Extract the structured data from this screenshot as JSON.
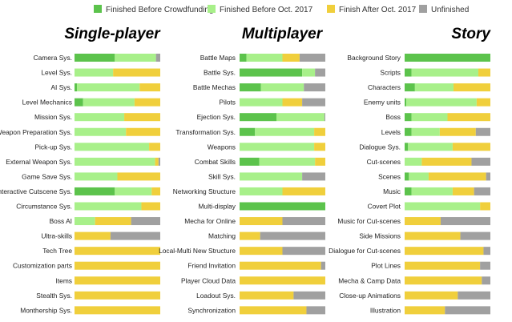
{
  "colors": {
    "before_crowdfunding": "#5cc34c",
    "before_oct_2017": "#a8f08a",
    "after_oct_2017": "#f0cf3c",
    "unfinished": "#a0a0a0"
  },
  "chart_data": [
    {
      "type": "bar",
      "orientation": "horizontal",
      "stacked": true,
      "title": "Single-player",
      "legend": {
        "placement": "top",
        "entries": [
          "Finished Before Crowdfunding",
          "Finished Before Oct. 2017",
          "Finish After Oct. 2017",
          "Unfinished"
        ]
      },
      "xlim": [
        0,
        100
      ],
      "categories": [
        "Camera Sys.",
        "Level Sys.",
        "AI Sys.",
        "Level Mechanics",
        "Mission Sys.",
        "Weapon Preparation Sys.",
        "Pick-up Sys.",
        "External Weapon Sys.",
        "Game Save Sys.",
        "Interactive Cutscene Sys.",
        "Circumstance Sys.",
        "Boss AI",
        "Ultra-skills",
        "Tech Tree",
        "Customization parts",
        "Items",
        "Stealth Sys.",
        "Monthership Sys."
      ],
      "series": [
        {
          "name": "Finished Before Crowdfunding",
          "values": [
            47,
            0,
            3,
            10,
            0,
            0,
            0,
            0,
            0,
            47,
            0,
            0,
            0,
            0,
            0,
            0,
            0,
            0
          ]
        },
        {
          "name": "Finished Before Oct. 2017",
          "values": [
            48,
            45,
            73,
            60,
            58,
            60,
            87,
            94,
            50,
            43,
            78,
            24,
            0,
            0,
            0,
            0,
            0,
            0
          ]
        },
        {
          "name": "Finish After Oct. 2017",
          "values": [
            0,
            55,
            24,
            30,
            42,
            40,
            13,
            4,
            50,
            10,
            22,
            42,
            42,
            100,
            100,
            100,
            100,
            100
          ]
        },
        {
          "name": "Unfinished",
          "values": [
            5,
            0,
            0,
            0,
            0,
            0,
            0,
            2,
            0,
            0,
            0,
            34,
            58,
            0,
            0,
            0,
            0,
            0
          ]
        }
      ]
    },
    {
      "type": "bar",
      "orientation": "horizontal",
      "stacked": true,
      "title": "Multiplayer",
      "xlim": [
        0,
        100
      ],
      "categories": [
        "Battle Maps",
        "Battle Sys.",
        "Battle Mechas",
        "Pilots",
        "Ejection Sys.",
        "Transformation Sys.",
        "Weapons",
        "Combat Skills",
        "Skill Sys.",
        "Networking Structure",
        "Multi-display",
        "Mecha for Online",
        "Matching",
        "Local-Multi New Structure",
        "Friend Invitation",
        "Player Cloud Data",
        "Loadout Sys.",
        "Synchronization"
      ],
      "series": [
        {
          "name": "Finished Before Crowdfunding",
          "values": [
            8,
            73,
            25,
            0,
            43,
            18,
            0,
            23,
            0,
            0,
            100,
            0,
            0,
            0,
            0,
            0,
            0,
            0
          ]
        },
        {
          "name": "Finished Before Oct. 2017",
          "values": [
            42,
            15,
            50,
            50,
            56,
            69,
            87,
            65,
            73,
            50,
            0,
            0,
            0,
            0,
            0,
            0,
            0,
            0
          ]
        },
        {
          "name": "Finish After Oct. 2017",
          "values": [
            20,
            0,
            0,
            23,
            0,
            13,
            13,
            12,
            0,
            50,
            0,
            50,
            24,
            50,
            95,
            100,
            63,
            78
          ]
        },
        {
          "name": "Unfinished",
          "values": [
            30,
            12,
            25,
            27,
            1,
            0,
            0,
            0,
            27,
            0,
            0,
            50,
            76,
            50,
            5,
            0,
            37,
            22
          ]
        }
      ]
    },
    {
      "type": "bar",
      "orientation": "horizontal",
      "stacked": true,
      "title": "Story",
      "xlim": [
        0,
        100
      ],
      "categories": [
        "Background Story",
        "Scripts",
        "Characters",
        "Enemy units",
        "Boss",
        "Levels",
        "Dialogue Sys.",
        "Cut-scenes",
        "Scenes",
        "Music",
        "Covert Plot",
        "Music for Cut-scenes",
        "Side Missions",
        "Dialogue for Cut-scenes",
        "Plot Lines",
        "Mecha & Camp Data",
        "Close-up Animations",
        "Illustration"
      ],
      "series": [
        {
          "name": "Finished Before Crowdfunding",
          "values": [
            100,
            8,
            12,
            2,
            8,
            8,
            4,
            0,
            5,
            8,
            0,
            0,
            0,
            0,
            0,
            0,
            0,
            0
          ]
        },
        {
          "name": "Finished Before Oct. 2017",
          "values": [
            0,
            78,
            45,
            82,
            42,
            33,
            52,
            20,
            23,
            48,
            88,
            0,
            0,
            0,
            0,
            0,
            0,
            0
          ]
        },
        {
          "name": "Finish After Oct. 2017",
          "values": [
            0,
            14,
            43,
            16,
            50,
            42,
            44,
            58,
            67,
            25,
            12,
            42,
            65,
            92,
            88,
            90,
            62,
            47
          ]
        },
        {
          "name": "Unfinished",
          "values": [
            0,
            0,
            0,
            0,
            0,
            17,
            0,
            22,
            5,
            19,
            0,
            58,
            35,
            8,
            12,
            10,
            38,
            53
          ]
        }
      ]
    }
  ]
}
